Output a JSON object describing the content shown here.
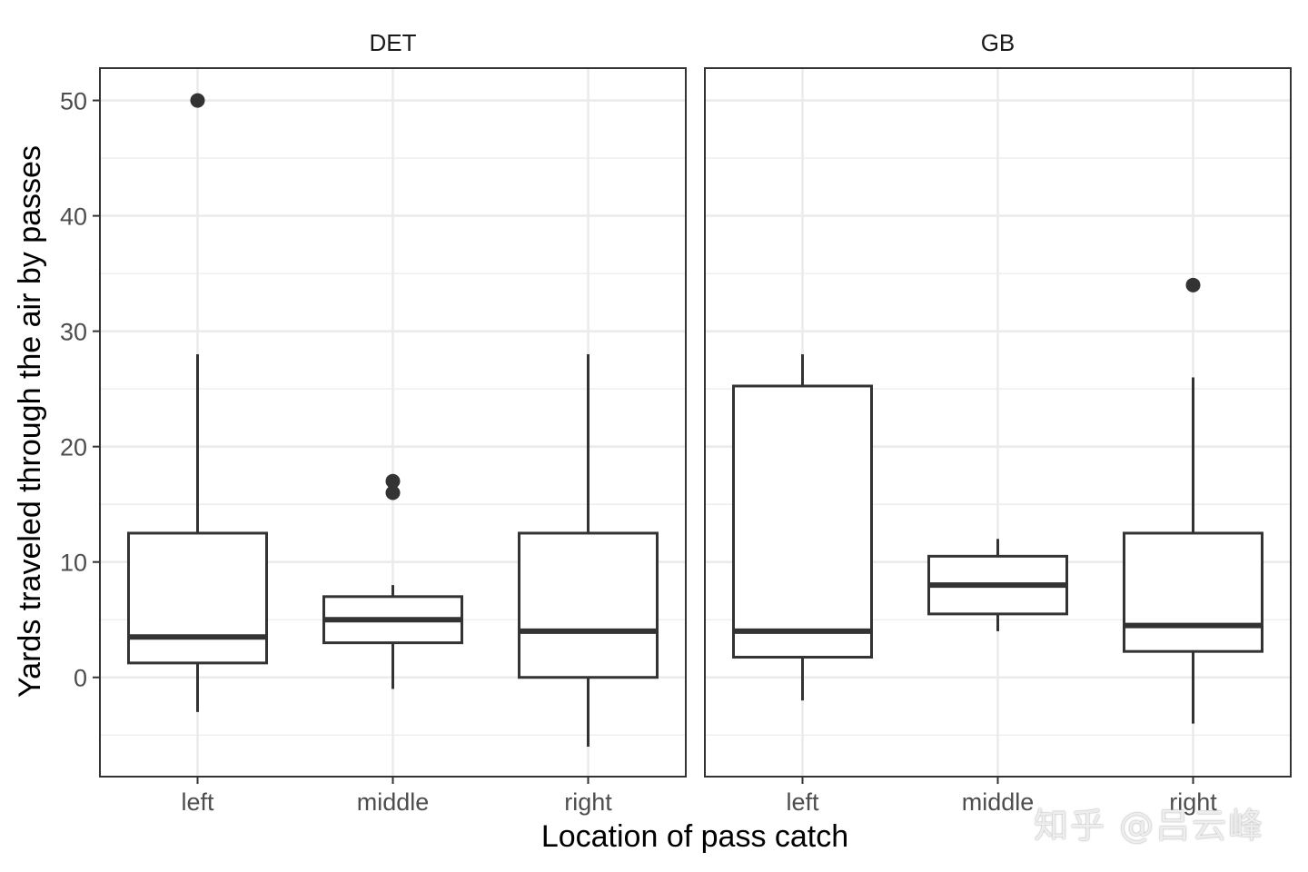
{
  "chart_data": {
    "type": "boxplot",
    "title": "",
    "xlabel": "Location of pass catch",
    "ylabel": "Yards traveled through the air by passes",
    "ylim": [
      -8.6,
      52.8
    ],
    "yticks": [
      0,
      10,
      20,
      30,
      40,
      50
    ],
    "grid": true,
    "categories": [
      "left",
      "middle",
      "right"
    ],
    "facets": [
      {
        "name": "DET",
        "boxes": [
          {
            "category": "left",
            "lower_whisker": -3,
            "q1": 1.25,
            "median": 3.5,
            "q3": 12.5,
            "upper_whisker": 28,
            "outliers": [
              50
            ]
          },
          {
            "category": "middle",
            "lower_whisker": -1,
            "q1": 3,
            "median": 5,
            "q3": 7,
            "upper_whisker": 8,
            "outliers": [
              16,
              17
            ]
          },
          {
            "category": "right",
            "lower_whisker": -6,
            "q1": 0,
            "median": 4,
            "q3": 12.5,
            "upper_whisker": 28,
            "outliers": []
          }
        ]
      },
      {
        "name": "GB",
        "boxes": [
          {
            "category": "left",
            "lower_whisker": -2,
            "q1": 1.75,
            "median": 4,
            "q3": 25.25,
            "upper_whisker": 28,
            "outliers": []
          },
          {
            "category": "middle",
            "lower_whisker": 4,
            "q1": 5.5,
            "median": 8,
            "q3": 10.5,
            "upper_whisker": 12,
            "outliers": []
          },
          {
            "category": "right",
            "lower_whisker": -4,
            "q1": 2.25,
            "median": 4.5,
            "q3": 12.5,
            "upper_whisker": 26,
            "outliers": [
              34
            ]
          }
        ]
      }
    ],
    "colors": {
      "box_line": "#333333",
      "grid": "#ebebeb",
      "panel_border": "#333333",
      "tick_label": "#4d4d4d",
      "axis_title": "#000000"
    }
  },
  "watermark": "知乎 @吕云峰"
}
